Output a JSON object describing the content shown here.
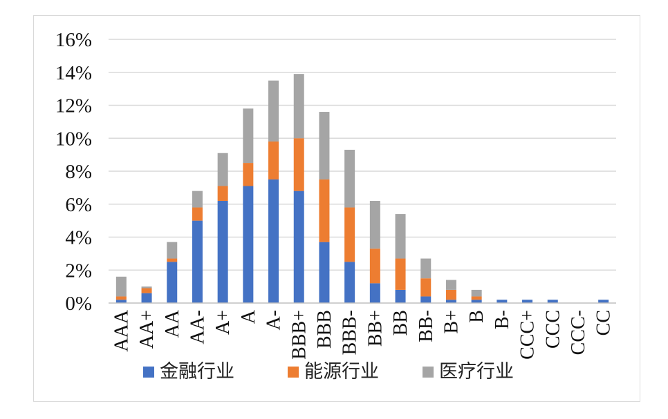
{
  "chart_data": {
    "type": "bar",
    "stacked": true,
    "categories": [
      "AAA",
      "AA+",
      "AA",
      "AA-",
      "A+",
      "A",
      "A-",
      "BBB+",
      "BBB",
      "BBB-",
      "BB+",
      "BB",
      "BB-",
      "B+",
      "B",
      "B-",
      "CCC+",
      "CCC",
      "CCC-",
      "CC"
    ],
    "series": [
      {
        "name": "金融行业",
        "color": "#4472c4",
        "values": [
          0.2,
          0.6,
          2.5,
          5.0,
          6.2,
          7.1,
          7.5,
          6.8,
          3.7,
          2.5,
          1.2,
          0.8,
          0.4,
          0.2,
          0.2,
          0.2,
          0.2,
          0.2,
          0.0,
          0.2
        ]
      },
      {
        "name": "能源行业",
        "color": "#ed7d31",
        "values": [
          0.2,
          0.3,
          0.2,
          0.8,
          0.9,
          1.4,
          2.3,
          3.2,
          3.8,
          3.3,
          2.1,
          1.9,
          1.1,
          0.6,
          0.2,
          0.0,
          0.0,
          0.0,
          0.0,
          0.0
        ]
      },
      {
        "name": "医疗行业",
        "color": "#a5a5a5",
        "values": [
          1.2,
          0.1,
          1.0,
          1.0,
          2.0,
          3.3,
          3.7,
          3.9,
          4.1,
          3.5,
          2.9,
          2.7,
          1.2,
          0.6,
          0.4,
          0.0,
          0.0,
          0.0,
          0.0,
          0.0
        ]
      }
    ],
    "yticks": [
      "0%",
      "2%",
      "4%",
      "6%",
      "8%",
      "10%",
      "12%",
      "14%",
      "16%"
    ],
    "ylim": [
      0,
      16
    ],
    "grid": true,
    "legend_position": "bottom"
  }
}
